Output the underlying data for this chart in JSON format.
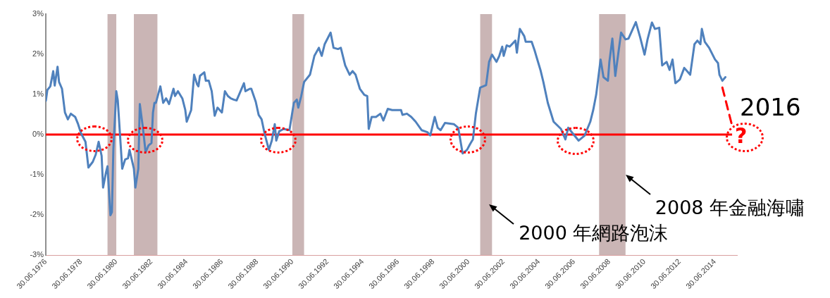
{
  "chart_data": {
    "type": "line",
    "marker": "none",
    "legend": false,
    "xlim": [
      "1976-06-30",
      "2015-09-30"
    ],
    "xticks": [
      {
        "value": "1976-06-30",
        "label": "30.06.1976"
      },
      {
        "value": "1978-06-30",
        "label": "30.06.1978"
      },
      {
        "value": "1980-06-30",
        "label": "30.06.1980"
      },
      {
        "value": "1982-06-30",
        "label": "30.06.1982"
      },
      {
        "value": "1984-06-30",
        "label": "30.06.1984"
      },
      {
        "value": "1986-06-30",
        "label": "30.06.1986"
      },
      {
        "value": "1988-06-30",
        "label": "30.06.1988"
      },
      {
        "value": "1990-06-30",
        "label": "30.06.1990"
      },
      {
        "value": "1992-06-30",
        "label": "30.06.1992"
      },
      {
        "value": "1994-06-30",
        "label": "30.06.1994"
      },
      {
        "value": "1996-06-30",
        "label": "30.06.1996"
      },
      {
        "value": "1998-06-30",
        "label": "30.06.1998"
      },
      {
        "value": "2000-06-30",
        "label": "30.06.2000"
      },
      {
        "value": "2002-06-30",
        "label": "30.06.2002"
      },
      {
        "value": "2004-06-30",
        "label": "30.06.2004"
      },
      {
        "value": "2006-06-30",
        "label": "30.06.2006"
      },
      {
        "value": "2008-06-30",
        "label": "30.06.2008"
      },
      {
        "value": "2010-06-30",
        "label": "30.06.2010"
      },
      {
        "value": "2012-06-30",
        "label": "30.06.2012"
      },
      {
        "value": "2014-06-30",
        "label": "30.06.2014"
      }
    ],
    "ylim": [
      -3,
      3
    ],
    "yticks": [
      {
        "value": -3,
        "label": "-3%"
      },
      {
        "value": -2,
        "label": "-2%"
      },
      {
        "value": -1,
        "label": "-1%"
      },
      {
        "value": 0,
        "label": "0%"
      },
      {
        "value": 1,
        "label": "1%"
      },
      {
        "value": 2,
        "label": "2%"
      },
      {
        "value": 3,
        "label": "3%"
      }
    ],
    "series": [
      {
        "color": "#4f81bd",
        "line_style": "solid",
        "x": [
          "1976-07",
          "1976-08",
          "1976-10",
          "1976-12",
          "1977-01",
          "1977-03",
          "1977-04",
          "1977-06",
          "1977-08",
          "1977-10",
          "1977-12",
          "1978-03",
          "1978-05",
          "1978-07",
          "1978-10",
          "1978-12",
          "1979-03",
          "1979-05",
          "1979-07",
          "1979-09",
          "1979-10",
          "1979-12",
          "1980-01",
          "1980-03",
          "1980-04",
          "1980-05",
          "1980-07",
          "1980-08",
          "1980-11",
          "1981-01",
          "1981-03",
          "1981-04",
          "1981-07",
          "1981-08",
          "1981-10",
          "1981-11",
          "1982-01",
          "1982-03",
          "1982-05",
          "1982-07",
          "1982-08",
          "1982-09",
          "1982-10",
          "1983-01",
          "1983-03",
          "1983-05",
          "1983-07",
          "1983-10",
          "1983-11",
          "1984-01",
          "1984-04",
          "1984-06",
          "1984-07",
          "1984-10",
          "1984-12",
          "1985-02",
          "1985-03",
          "1985-04",
          "1985-07",
          "1985-08",
          "1985-10",
          "1985-12",
          "1986-02",
          "1986-04",
          "1986-07",
          "1986-09",
          "1986-11",
          "1987-01",
          "1987-03",
          "1987-05",
          "1987-07",
          "1987-10",
          "1987-11",
          "1988-02",
          "1988-03",
          "1988-06",
          "1988-08",
          "1988-10",
          "1988-12",
          "1989-03",
          "1989-05",
          "1989-07",
          "1989-08",
          "1989-10",
          "1990-01",
          "1990-05",
          "1990-08",
          "1990-10",
          "1990-11",
          "1991-01",
          "1991-03",
          "1991-07",
          "1991-10",
          "1992-01",
          "1992-03",
          "1992-05",
          "1992-09",
          "1992-11",
          "1993-02",
          "1993-04",
          "1993-07",
          "1993-10",
          "1993-12",
          "1994-02",
          "1994-05",
          "1994-08",
          "1994-10",
          "1994-11",
          "1995-01",
          "1995-04",
          "1995-07",
          "1995-09",
          "1995-12",
          "1996-03",
          "1996-09",
          "1996-10",
          "1997-01",
          "1997-04",
          "1997-07",
          "1997-11",
          "1998-03",
          "1998-05",
          "1998-08",
          "1998-10",
          "1998-12",
          "1999-03",
          "1999-09",
          "1999-12",
          "2000-03",
          "2000-06",
          "2000-08",
          "2000-10",
          "2000-12",
          "2001-03",
          "2001-07",
          "2001-09",
          "2001-11",
          "2002-02",
          "2002-04",
          "2002-06",
          "2002-07",
          "2002-09",
          "2002-11",
          "2003-03",
          "2003-04",
          "2003-06",
          "2003-09",
          "2003-10",
          "2004-02",
          "2004-04",
          "2004-08",
          "2004-10",
          "2005-01",
          "2005-05",
          "2005-10",
          "2006-01",
          "2006-03",
          "2006-06",
          "2006-10",
          "2007-02",
          "2007-06",
          "2007-08",
          "2007-10",
          "2008-01",
          "2008-03",
          "2008-06",
          "2008-07",
          "2008-09",
          "2008-11",
          "2009-01",
          "2009-03",
          "2009-06",
          "2009-08",
          "2010-01",
          "2010-04",
          "2010-07",
          "2010-09",
          "2010-12",
          "2011-02",
          "2011-05",
          "2011-07",
          "2011-10",
          "2011-12",
          "2012-02",
          "2012-04",
          "2012-07",
          "2012-10",
          "2013-02",
          "2013-05",
          "2013-07",
          "2013-09",
          "2013-10",
          "2013-12",
          "2014-03",
          "2014-07",
          "2014-09",
          "2014-10",
          "2014-12",
          "2015-02"
        ],
        "values": [
          0.84,
          1.11,
          1.2,
          1.58,
          1.22,
          1.69,
          1.31,
          1.14,
          0.55,
          0.38,
          0.52,
          0.44,
          0.26,
          0.03,
          -0.18,
          -0.82,
          -0.68,
          -0.5,
          -0.18,
          -0.53,
          -1.32,
          -0.94,
          -0.79,
          -2.01,
          -1.93,
          -0.38,
          1.08,
          0.85,
          -0.85,
          -0.62,
          -0.59,
          -0.38,
          -0.85,
          -1.32,
          -0.85,
          0.76,
          0.2,
          -0.44,
          -0.27,
          -0.21,
          0.55,
          0.79,
          0.79,
          1.2,
          0.79,
          0.9,
          0.76,
          1.14,
          0.96,
          1.08,
          0.9,
          0.61,
          0.32,
          0.61,
          1.49,
          1.25,
          1.2,
          1.46,
          1.55,
          1.34,
          1.34,
          1.08,
          0.47,
          0.67,
          0.55,
          1.08,
          0.96,
          0.9,
          0.87,
          0.85,
          1.02,
          1.28,
          1.08,
          1.14,
          1.14,
          0.82,
          0.49,
          0.38,
          0.03,
          -0.38,
          -0.15,
          0.26,
          -0.15,
          0.08,
          0.14,
          0.11,
          0.79,
          0.87,
          0.67,
          0.96,
          1.31,
          1.49,
          1.96,
          2.16,
          1.96,
          2.25,
          2.54,
          2.16,
          2.13,
          2.16,
          1.72,
          1.49,
          1.58,
          1.49,
          1.14,
          0.99,
          0.96,
          0.14,
          0.44,
          0.44,
          0.52,
          0.35,
          0.64,
          0.61,
          0.61,
          0.49,
          0.52,
          0.44,
          0.32,
          0.11,
          0.06,
          -0.02,
          0.44,
          0.17,
          0.11,
          0.29,
          0.26,
          0.17,
          -0.47,
          -0.38,
          -0.24,
          -0.12,
          0.52,
          1.17,
          1.23,
          1.81,
          1.99,
          1.81,
          1.96,
          2.19,
          1.96,
          2.22,
          2.19,
          2.34,
          2.04,
          2.63,
          2.45,
          2.31,
          2.31,
          2.1,
          1.61,
          1.31,
          0.79,
          0.32,
          0.14,
          -0.12,
          0.17,
          0.03,
          -0.15,
          -0.03,
          0.32,
          0.61,
          0.99,
          1.87,
          1.43,
          1.34,
          1.81,
          2.39,
          1.46,
          2.01,
          2.54,
          2.37,
          2.39,
          2.8,
          2.42,
          1.99,
          2.37,
          2.79,
          2.63,
          2.66,
          1.72,
          1.81,
          1.61,
          1.87,
          1.28,
          1.37,
          1.66,
          1.49,
          2.25,
          2.34,
          2.25,
          2.63,
          2.31,
          2.16,
          1.87,
          1.78,
          1.49,
          1.34,
          1.43
        ]
      },
      {
        "color": "#ff0000",
        "line_style": "dashed",
        "x": [
          "2014-12",
          "2015-07"
        ],
        "values": [
          1.17,
          0.17
        ]
      }
    ],
    "ref_lines": [
      {
        "axis": "y",
        "value": 0,
        "color": "#ff0000"
      }
    ],
    "bands": [
      {
        "axis": "x",
        "from": "1980-01",
        "to": "1980-07",
        "color": "#b89c9c"
      },
      {
        "axis": "x",
        "from": "1981-07",
        "to": "1982-11",
        "color": "#b89c9c"
      },
      {
        "axis": "x",
        "from": "1990-07",
        "to": "1991-03",
        "color": "#b89c9c"
      },
      {
        "axis": "x",
        "from": "2001-03",
        "to": "2001-11",
        "color": "#b89c9c"
      },
      {
        "axis": "x",
        "from": "2007-12",
        "to": "2009-06",
        "color": "#b89c9c"
      }
    ],
    "annotations": [
      {
        "text": "?",
        "x": "2015-07",
        "y": 0
      },
      "2016",
      {
        "text": "2000 年網路泡沫",
        "x": "2001-09",
        "y": -1.73
      },
      {
        "text": "2008 年金融海嘯",
        "x": "2009-06",
        "y": -1.0
      }
    ]
  }
}
